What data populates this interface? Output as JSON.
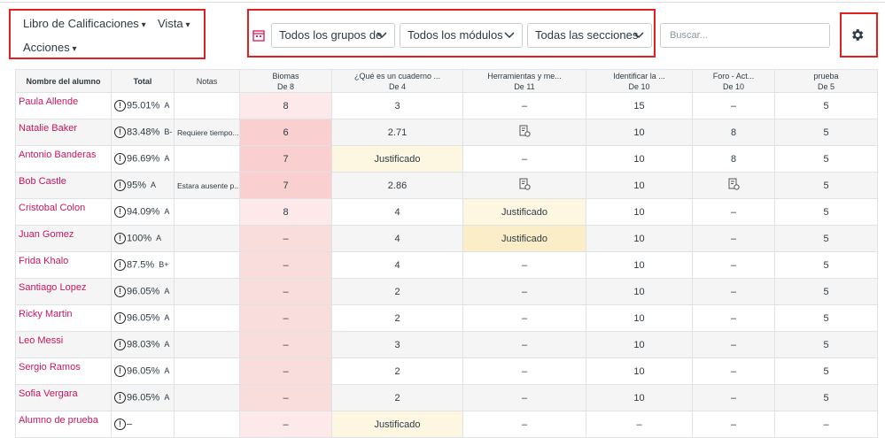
{
  "toolbar": {
    "menus": [
      "Libro de Calificaciones",
      "Vista",
      "Acciones"
    ],
    "filters": [
      "Todos los grupos de",
      "Todos los módulos",
      "Todas las secciones"
    ],
    "search_placeholder": "Buscar..."
  },
  "table": {
    "headers": [
      {
        "title": "Nombre del alumno"
      },
      {
        "title": "Total"
      },
      {
        "title": "Notas"
      },
      {
        "title": "Biomas",
        "subtitle": "De 8"
      },
      {
        "title": "¿Qué es un cuaderno ...",
        "subtitle": "De 4"
      },
      {
        "title": "Herramientas y me...",
        "subtitle": "De 11"
      },
      {
        "title": "Identificar la ...",
        "subtitle": "De 10"
      },
      {
        "title": "Foro - Act...",
        "subtitle": "De 10"
      },
      {
        "title": "prueba",
        "subtitle": "De 5"
      }
    ],
    "rows": [
      {
        "name": "Paula Allende",
        "total": "95.01%",
        "grade": "A",
        "notes": null,
        "cells": [
          "8",
          "3",
          "–",
          "15",
          "–",
          "5"
        ]
      },
      {
        "name": "Natalie Baker",
        "total": "83.48%",
        "grade": "B-",
        "notes": "Requiere tiempo...",
        "cells": [
          "6",
          "2.71",
          null,
          "10",
          "8",
          "5"
        ]
      },
      {
        "name": "Antonio Banderas",
        "total": "96.69%",
        "grade": "A",
        "notes": null,
        "cells": [
          "7",
          "Justificado",
          "–",
          "10",
          "8",
          "5"
        ]
      },
      {
        "name": "Bob Castle",
        "total": "95%",
        "grade": "A",
        "notes": "Estara ausente p...",
        "cells": [
          "7",
          "2.86",
          null,
          "10",
          null,
          "5"
        ]
      },
      {
        "name": "Cristobal Colon",
        "total": "94.09%",
        "grade": "A",
        "notes": null,
        "cells": [
          "8",
          "4",
          "Justificado",
          "10",
          "–",
          "5"
        ]
      },
      {
        "name": "Juan Gomez",
        "total": "100%",
        "grade": "A",
        "notes": null,
        "cells": [
          "–",
          "4",
          "Justificado",
          "10",
          "–",
          "5"
        ]
      },
      {
        "name": "Frida Khalo",
        "total": "87.5%",
        "grade": "B+",
        "notes": null,
        "cells": [
          "–",
          "4",
          "–",
          "10",
          "–",
          "5"
        ]
      },
      {
        "name": "Santiago Lopez",
        "total": "96.05%",
        "grade": "A",
        "notes": null,
        "cells": [
          "–",
          "2",
          "–",
          "10",
          "–",
          "5"
        ]
      },
      {
        "name": "Ricky Martin",
        "total": "96.05%",
        "grade": "A",
        "notes": null,
        "cells": [
          "–",
          "2",
          "–",
          "10",
          "–",
          "5"
        ]
      },
      {
        "name": "Leo Messi",
        "total": "98.03%",
        "grade": "A",
        "notes": null,
        "cells": [
          "–",
          "3",
          "–",
          "10",
          "–",
          "5"
        ]
      },
      {
        "name": "Sergio Ramos",
        "total": "96.05%",
        "grade": "A",
        "notes": null,
        "cells": [
          "–",
          "2",
          "–",
          "10",
          "–",
          "5"
        ]
      },
      {
        "name": "Sofia Vergara",
        "total": "96.05%",
        "grade": "A",
        "notes": null,
        "cells": [
          "–",
          "2",
          "–",
          "10",
          "–",
          "5"
        ]
      },
      {
        "name": "Alumno de prueba",
        "total": "–",
        "grade": null,
        "notes": null,
        "cells": [
          "–",
          "Justificado",
          "–",
          "–",
          "–",
          "–"
        ]
      }
    ]
  }
}
